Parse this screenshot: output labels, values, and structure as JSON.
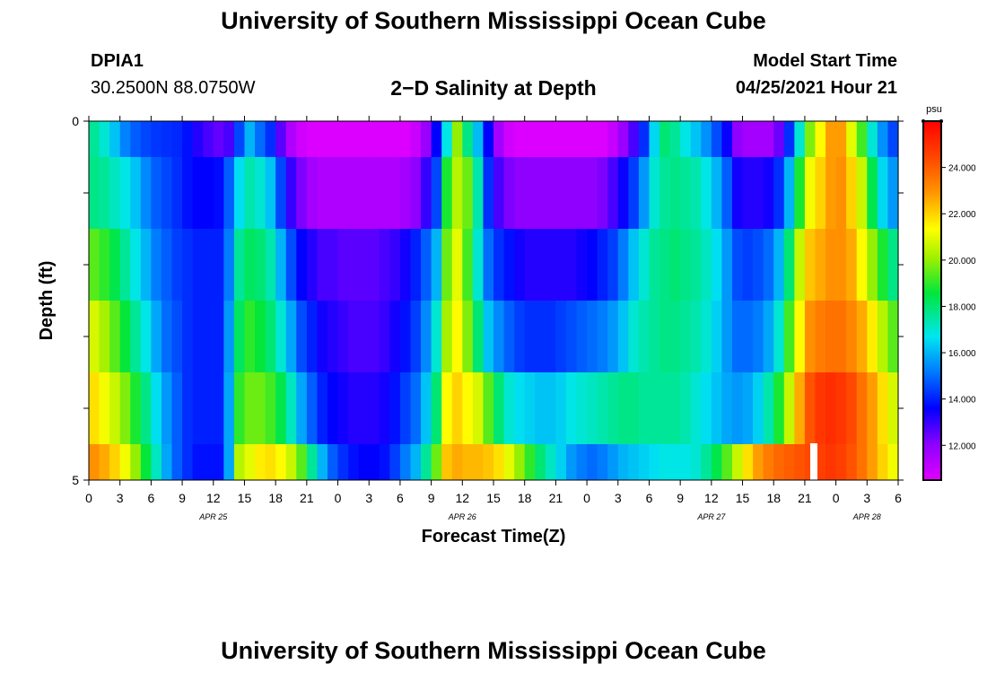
{
  "page_title_top": "University of Southern Mississippi Ocean Cube",
  "page_title_bottom": "University of Southern Mississippi Ocean Cube",
  "station": {
    "id": "DPIA1",
    "coords": "30.2500N  88.0750W"
  },
  "model": {
    "label": "Model Start Time",
    "time": "04/25/2021 Hour 21"
  },
  "chart_data": {
    "type": "heatmap",
    "title": "2−D Salinity at Depth",
    "xlabel": "Forecast Time(Z)",
    "ylabel": "Depth (ft)",
    "ylim": [
      0,
      5
    ],
    "y_tick_labels": [
      "0",
      "5"
    ],
    "x_tick_labels": [
      "0",
      "3",
      "6",
      "9",
      "12",
      "15",
      "18",
      "21",
      "0",
      "3",
      "6",
      "9",
      "12",
      "15",
      "18",
      "21",
      "0",
      "3",
      "6",
      "9",
      "12",
      "15",
      "18",
      "21",
      "0",
      "3",
      "6"
    ],
    "date_labels": [
      {
        "text": "APR 25",
        "hour": 12
      },
      {
        "text": "APR 26",
        "hour": 36
      },
      {
        "text": "APR 27",
        "hour": 60
      },
      {
        "text": "APR 28",
        "hour": 75
      }
    ],
    "x_range_hours": [
      0,
      78
    ],
    "colorbar": {
      "unit": "psu",
      "min": 10.5,
      "max": 26.0,
      "ticks": [
        "12.000",
        "14.000",
        "16.000",
        "18.000",
        "20.000",
        "22.000",
        "24.000"
      ],
      "tick_values": [
        12,
        14,
        16,
        18,
        20,
        22,
        24
      ]
    },
    "depth_layers_ft": [
      0,
      1,
      2,
      3,
      4,
      5
    ],
    "layer_time_hours": [
      0,
      1,
      2,
      3,
      4,
      5,
      6,
      7,
      8,
      9,
      10,
      11,
      12,
      13,
      14,
      15,
      16,
      17,
      18,
      19,
      20,
      21,
      22,
      23,
      24,
      25,
      26,
      27,
      28,
      29,
      30,
      31,
      32,
      33,
      34,
      35,
      36,
      37,
      38,
      39,
      40,
      41,
      42,
      43,
      44,
      45,
      46,
      47,
      48,
      49,
      50,
      51,
      52,
      53,
      54,
      55,
      56,
      57,
      58,
      59,
      60,
      61,
      62,
      63,
      64,
      65,
      66,
      67,
      68,
      69,
      70,
      71,
      72,
      73,
      74,
      75,
      76,
      77,
      78
    ],
    "salinity_layers": [
      [
        17.6,
        17.0,
        16.2,
        15.3,
        14.8,
        14.5,
        14.3,
        14.2,
        14.1,
        13.8,
        13.2,
        12.8,
        12.5,
        12.8,
        14.5,
        16.0,
        15.0,
        14.2,
        12.6,
        11.4,
        10.8,
        10.6,
        10.6,
        10.6,
        10.6,
        10.6,
        10.6,
        10.6,
        10.6,
        10.6,
        10.6,
        10.9,
        11.8,
        13.6,
        16.8,
        20.0,
        17.8,
        16.1,
        13.6,
        11.6,
        10.8,
        10.6,
        10.6,
        10.6,
        10.6,
        10.6,
        10.6,
        10.6,
        10.6,
        10.6,
        11.0,
        11.8,
        12.8,
        14.2,
        16.5,
        18.0,
        17.6,
        16.8,
        16.2,
        15.5,
        14.6,
        13.5,
        12.0,
        11.6,
        11.6,
        11.6,
        12.4,
        14.2,
        17.0,
        19.8,
        21.4,
        22.8,
        22.8,
        21.0,
        19.2,
        17.0,
        15.5,
        14.5,
        13.8
      ],
      [
        17.8,
        17.6,
        17.2,
        16.8,
        16.2,
        15.4,
        14.8,
        14.5,
        14.2,
        13.8,
        13.6,
        13.6,
        13.7,
        14.8,
        16.6,
        17.4,
        17.0,
        16.2,
        14.5,
        13.0,
        12.2,
        11.6,
        11.4,
        11.4,
        11.4,
        11.4,
        11.4,
        11.4,
        11.4,
        11.4,
        11.6,
        12.0,
        13.0,
        14.5,
        18.8,
        20.4,
        19.6,
        17.4,
        14.2,
        12.8,
        12.2,
        12.0,
        12.0,
        12.0,
        12.0,
        12.0,
        12.0,
        12.0,
        12.0,
        12.2,
        12.8,
        13.5,
        14.4,
        15.6,
        17.0,
        17.6,
        17.8,
        17.6,
        17.4,
        16.8,
        16.0,
        14.8,
        13.4,
        13.2,
        13.2,
        13.4,
        14.2,
        16.0,
        18.8,
        21.2,
        22.0,
        22.8,
        23.0,
        22.0,
        20.6,
        18.4,
        16.5,
        15.6,
        14.8
      ],
      [
        19.4,
        19.0,
        18.4,
        17.6,
        16.8,
        16.0,
        15.2,
        14.8,
        14.4,
        14.2,
        14.0,
        14.0,
        14.0,
        15.2,
        17.6,
        18.2,
        18.0,
        17.4,
        16.0,
        14.6,
        13.6,
        13.2,
        12.8,
        12.8,
        12.6,
        12.6,
        12.6,
        12.6,
        12.8,
        13.0,
        13.4,
        14.0,
        14.8,
        16.0,
        19.6,
        21.0,
        19.2,
        17.0,
        15.0,
        14.2,
        13.8,
        13.4,
        13.2,
        13.2,
        13.2,
        13.2,
        13.2,
        13.4,
        13.6,
        14.0,
        14.4,
        15.2,
        16.2,
        17.0,
        17.6,
        17.8,
        18.0,
        17.8,
        17.6,
        17.2,
        16.6,
        15.6,
        14.6,
        14.4,
        14.6,
        15.0,
        16.0,
        18.0,
        20.6,
        22.2,
        22.6,
        23.0,
        23.0,
        22.6,
        21.4,
        20.0,
        18.8,
        17.8,
        17.0
      ],
      [
        20.8,
        20.2,
        19.4,
        18.6,
        17.6,
        16.8,
        15.8,
        15.0,
        14.6,
        14.2,
        14.0,
        14.0,
        14.0,
        15.6,
        18.2,
        19.0,
        18.6,
        18.0,
        17.0,
        15.8,
        14.6,
        14.0,
        13.4,
        13.2,
        13.0,
        12.8,
        12.8,
        12.8,
        13.0,
        13.4,
        13.8,
        14.4,
        15.4,
        17.0,
        20.2,
        21.4,
        19.8,
        18.0,
        16.2,
        15.4,
        14.8,
        14.4,
        14.2,
        14.2,
        14.2,
        14.4,
        14.6,
        14.8,
        15.0,
        15.2,
        15.6,
        16.2,
        17.0,
        17.4,
        17.6,
        17.8,
        17.8,
        17.6,
        17.4,
        17.0,
        16.4,
        15.6,
        15.0,
        15.0,
        15.2,
        15.8,
        17.0,
        19.2,
        21.4,
        23.0,
        23.4,
        23.6,
        23.6,
        23.2,
        22.6,
        21.6,
        20.4,
        19.4,
        18.6
      ],
      [
        21.8,
        21.2,
        20.6,
        19.8,
        18.8,
        17.8,
        16.6,
        15.6,
        14.8,
        14.2,
        14.0,
        14.0,
        14.0,
        15.8,
        19.0,
        19.6,
        19.6,
        19.2,
        18.4,
        17.2,
        15.8,
        14.8,
        14.0,
        13.6,
        13.4,
        13.2,
        13.2,
        13.2,
        13.4,
        13.8,
        14.4,
        15.0,
        16.2,
        18.0,
        21.4,
        22.0,
        21.4,
        20.8,
        19.4,
        18.0,
        17.0,
        16.6,
        16.4,
        16.2,
        16.2,
        16.4,
        16.8,
        17.0,
        17.2,
        17.4,
        17.6,
        17.8,
        17.8,
        17.6,
        17.6,
        17.6,
        17.6,
        17.4,
        17.0,
        16.6,
        16.2,
        15.8,
        15.6,
        15.8,
        16.4,
        17.4,
        18.8,
        20.6,
        22.6,
        24.2,
        24.8,
        25.0,
        24.8,
        24.4,
        23.6,
        22.8,
        21.8,
        20.8,
        19.6
      ],
      [
        23.0,
        22.6,
        22.0,
        21.2,
        20.0,
        18.6,
        17.2,
        15.8,
        14.8,
        14.2,
        13.8,
        13.8,
        13.8,
        15.8,
        20.4,
        21.0,
        21.6,
        21.8,
        21.4,
        20.6,
        19.4,
        17.6,
        16.0,
        14.8,
        14.2,
        13.8,
        13.6,
        13.6,
        13.8,
        14.4,
        15.2,
        16.0,
        17.6,
        19.6,
        22.2,
        22.6,
        22.4,
        22.4,
        22.2,
        21.8,
        21.0,
        20.0,
        19.0,
        18.0,
        17.2,
        16.4,
        15.6,
        15.2,
        15.0,
        15.2,
        15.6,
        16.0,
        16.2,
        16.4,
        16.6,
        16.8,
        16.8,
        16.8,
        17.0,
        17.6,
        18.4,
        19.4,
        20.6,
        21.8,
        22.8,
        23.4,
        23.8,
        24.0,
        24.2,
        24.4,
        24.6,
        24.8,
        24.6,
        24.2,
        23.6,
        22.8,
        22.0,
        21.2,
        20.4
      ]
    ],
    "annotation": "white bar near hour 70-71 in bottom layer"
  }
}
